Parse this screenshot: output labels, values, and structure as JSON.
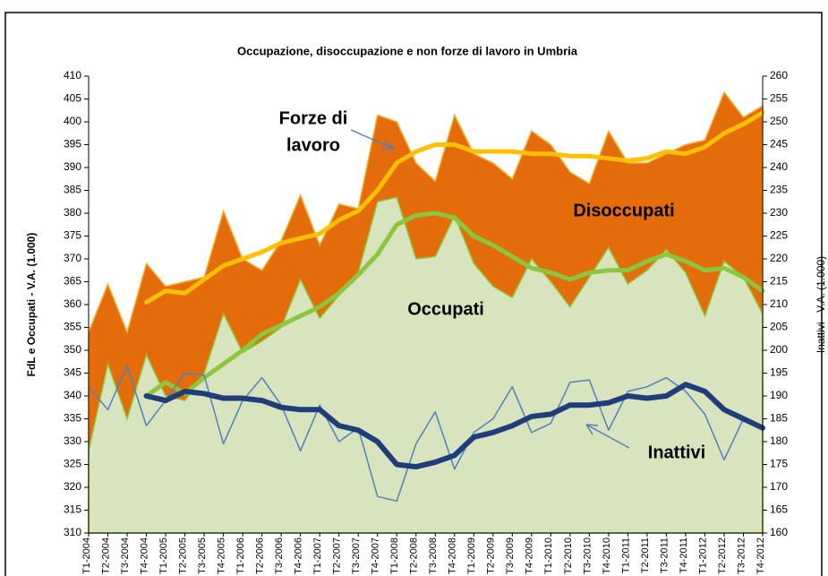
{
  "chart_data": {
    "type": "area-line",
    "title": "Occupazione, disoccupazione e non forze di lavoro in Umbria",
    "y_label": "FdL e Occupati  - V.A. (1.000)",
    "y2_label": "Inattivi - V.A. (1.000)",
    "categories": [
      "T1-2004",
      "T2-2004",
      "T3-2004",
      "T4-2004",
      "T1-2005",
      "T2-2005",
      "T3-2005",
      "T4-2005",
      "T1-2006",
      "T2-2006",
      "T3-2006",
      "T4-2006",
      "T1-2007",
      "T2-2007",
      "T3-2007",
      "T4-2007",
      "T1-2008",
      "T2-2008",
      "T3-2008",
      "T4-2008",
      "T1-2009",
      "T2-2009",
      "T3-2009",
      "T4-2009",
      "T1-2010",
      "T2-2010",
      "T3-2010",
      "T4-2010",
      "T1-2011",
      "T2-2011",
      "T3-2011",
      "T4-2011",
      "T1-2012",
      "T2-2012",
      "T3-2012",
      "T4-2012"
    ],
    "ylim": [
      310,
      410
    ],
    "yticks": [
      310,
      315,
      320,
      325,
      330,
      335,
      340,
      345,
      350,
      355,
      360,
      365,
      370,
      375,
      380,
      385,
      390,
      395,
      400,
      405,
      410
    ],
    "y2lim": [
      160,
      260
    ],
    "y2ticks": [
      160,
      165,
      170,
      175,
      180,
      185,
      190,
      195,
      200,
      205,
      210,
      215,
      220,
      225,
      230,
      235,
      240,
      245,
      250,
      255,
      260
    ],
    "series": [
      {
        "kind": "area",
        "color": "#e46c0a",
        "values": [
          354,
          364.5,
          354,
          369,
          364,
          365,
          366,
          380.5,
          370,
          367.5,
          374,
          384,
          373,
          382,
          381,
          401.5,
          400,
          391,
          387,
          401.5,
          393,
          391,
          387.5,
          398,
          395,
          389,
          386.5,
          398,
          391,
          391,
          393,
          395,
          396,
          406.5,
          401,
          403.5
        ]
      },
      {
        "kind": "area",
        "color": "#d7e4bd",
        "values": [
          328,
          347,
          335,
          349,
          340,
          339,
          345,
          358,
          349.5,
          352,
          355,
          365.5,
          357,
          362,
          367,
          382.5,
          383.5,
          370,
          370.5,
          379.5,
          369,
          364,
          361.5,
          370,
          365,
          359.5,
          366,
          372.5,
          364.5,
          367.5,
          372,
          367,
          357.5,
          369.5,
          366,
          358
        ]
      },
      {
        "kind": "line",
        "color": "#ffc000",
        "width": 5,
        "values": [
          null,
          null,
          null,
          360.5,
          363,
          362.5,
          365.5,
          368.5,
          370,
          371.5,
          373.5,
          374.5,
          375.5,
          378.5,
          380.5,
          385,
          391,
          393.5,
          395,
          395,
          393.5,
          393.5,
          393.5,
          393,
          393,
          392.5,
          392.5,
          392,
          391.5,
          392,
          393.5,
          393,
          394.5,
          397.5,
          399.5,
          402
        ]
      },
      {
        "kind": "line",
        "color": "#8cc63e",
        "width": 5,
        "values": [
          null,
          null,
          null,
          340,
          343,
          340.5,
          344,
          347,
          350,
          353.5,
          355.5,
          357.5,
          359.5,
          362.5,
          366.5,
          371,
          377.5,
          379.5,
          380,
          379,
          375,
          373,
          370.5,
          368,
          367,
          365.5,
          367,
          367.5,
          367.5,
          369.5,
          371,
          369.5,
          367.5,
          368,
          366,
          363
        ]
      },
      {
        "kind": "line",
        "axis": "y2",
        "color": "#4f81bd",
        "width": 1.5,
        "values": [
          192,
          187,
          196.5,
          183.5,
          189,
          195,
          194.5,
          179.5,
          189,
          194,
          188,
          178,
          188,
          180,
          183,
          168,
          167,
          179.5,
          186.5,
          174,
          182,
          185,
          192,
          182,
          184,
          193,
          193.5,
          182.5,
          191,
          192,
          194,
          191,
          186,
          176,
          185,
          183
        ]
      },
      {
        "kind": "line",
        "axis": "y2",
        "color": "#1f3d7a",
        "width": 6,
        "values": [
          null,
          null,
          null,
          190,
          189,
          191,
          190.5,
          189.5,
          189.5,
          189,
          187.5,
          187,
          187,
          183.5,
          182.5,
          180,
          175,
          174.5,
          175.5,
          177,
          181,
          182,
          183.5,
          185.5,
          186,
          188,
          188,
          188.5,
          190,
          189.5,
          190,
          192.5,
          191,
          187,
          185,
          183
        ]
      }
    ],
    "annotations": [
      {
        "lines": [
          "Forze di",
          "lavoro"
        ]
      },
      {
        "text": "Disoccupati"
      },
      {
        "text": "Occupati"
      },
      {
        "text": "Inattivi"
      }
    ]
  }
}
